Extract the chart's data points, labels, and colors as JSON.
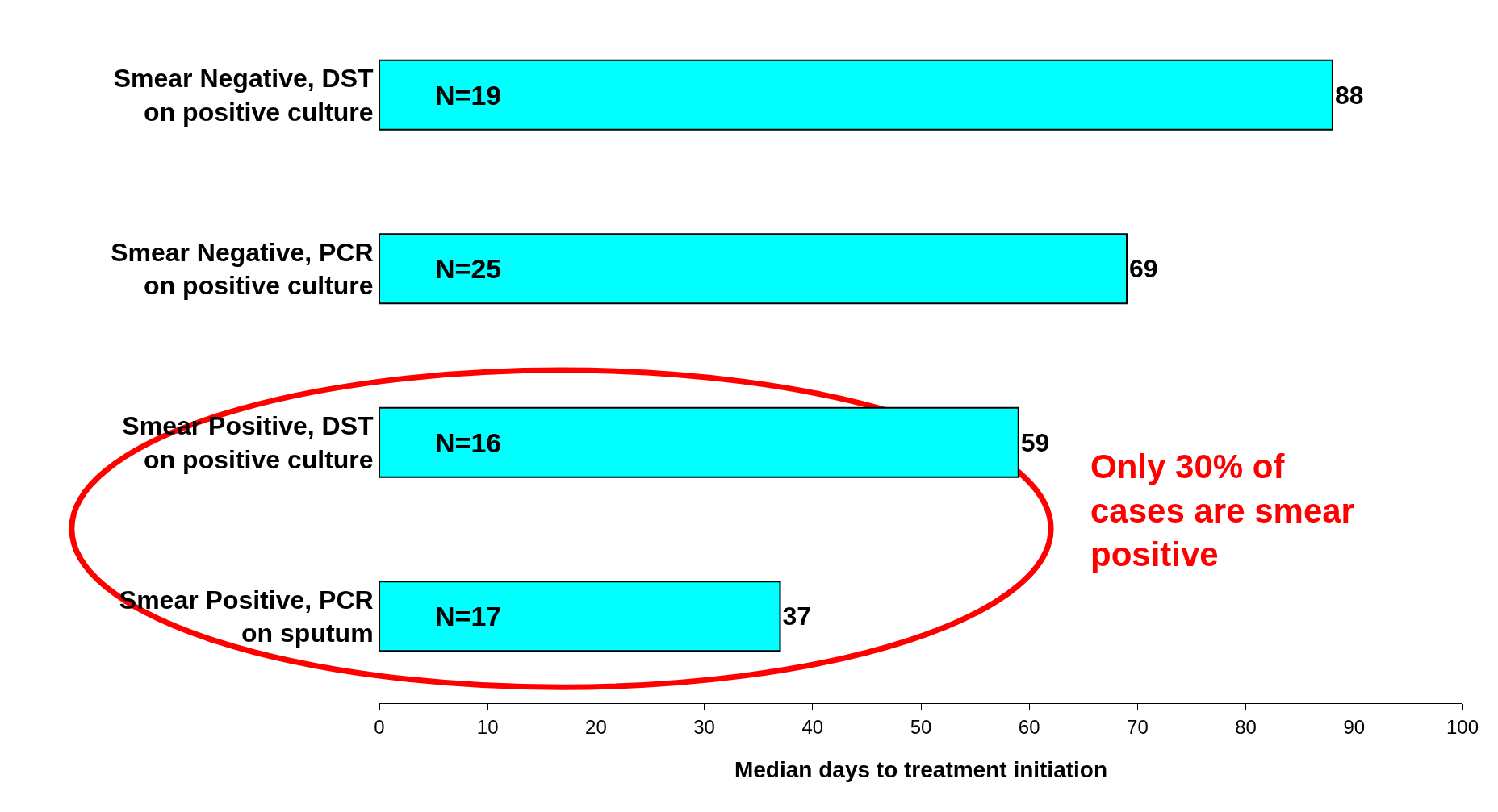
{
  "chart_data": {
    "type": "bar",
    "orientation": "horizontal",
    "xlabel": "Median days to treatment initiation",
    "categories": [
      "Smear Negative, DST\non positive culture",
      "Smear Negative, PCR\non positive culture",
      "Smear Positive, DST\non positive culture",
      "Smear Positive, PCR\non sputum"
    ],
    "values": [
      88,
      69,
      59,
      37
    ],
    "color": "#00ffff",
    "data_labels": true,
    "xlim": [
      0,
      100
    ],
    "xticks": [
      0,
      10,
      20,
      30,
      40,
      50,
      60,
      70,
      80,
      90,
      100
    ],
    "legend": false,
    "annotations": [
      "N=19",
      "N=25",
      "N=16",
      "N=17",
      "Only 30% of\ncases are smear\npositive"
    ]
  }
}
